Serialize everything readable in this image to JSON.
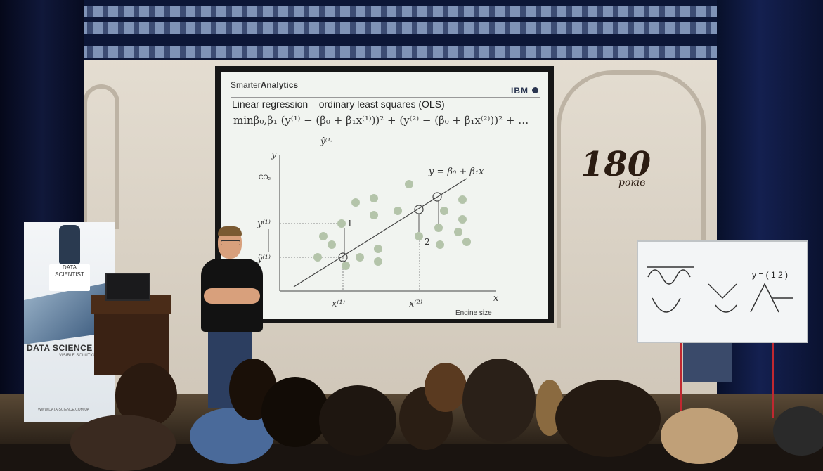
{
  "slide": {
    "brand_light": "Smarter",
    "brand_bold": "Analytics",
    "logo": "IBM",
    "title": "Linear regression – ordinary least squares (OLS)",
    "equation": "minβ₀,β₁ (y⁽¹⁾ − (β₀ + β₁x⁽¹⁾))² + (y⁽²⁾ − (β₀ + β₁x⁽²⁾))² + …",
    "yhat_label": "ŷ⁽¹⁾",
    "plot": {
      "y_axis": "y",
      "x_axis": "x",
      "y_unit": "CO₂",
      "x_unit": "Engine size",
      "line_label": "y = β₀ + β₁x",
      "y1_label": "y⁽¹⁾",
      "yhat1_label": "ŷ⁽¹⁾",
      "x1_label": "x⁽¹⁾",
      "x2_label": "x⁽²⁾",
      "point1": "1",
      "point2": "2"
    }
  },
  "banner": {
    "badge": "DATA SCIENTIST",
    "name": "DATA SCIENCE UA",
    "sub": "VISIBLE SOLUTION",
    "url": "WWW.DATA-SCIENCE.COM.UA"
  },
  "wall": {
    "anniversary": "180",
    "anniversary_word": "років"
  },
  "whiteboard": {
    "text": "y = ( 1 2 )"
  }
}
